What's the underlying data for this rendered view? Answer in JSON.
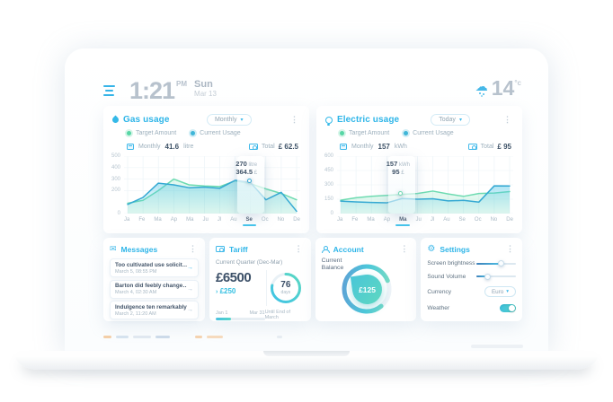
{
  "colors": {
    "accent": "#2eb5e8",
    "target_green": "#6edbb1",
    "current_blue": "#35a9d3",
    "text_dark": "#3f5368",
    "text_muted": "#9db0bd"
  },
  "glyphs": {
    "chevron_down": "▾",
    "kebab": "⋮",
    "envelope": "✉",
    "gear": "⚙",
    "cloud": "☁",
    "arrow_right": "→",
    "delta_caret": "›"
  },
  "statusbar": {
    "time": "1:21",
    "meridiem": "PM",
    "day": "Sun",
    "date": "Mar 13",
    "temperature": "14",
    "temp_unit": "°c"
  },
  "gas_panel": {
    "title": "Gas usage",
    "period": "Monthly",
    "meta_period_label": "Monthly",
    "meta_value": "41.6",
    "meta_unit": "litre",
    "total_label": "Total",
    "total_value": "£ 62.5"
  },
  "electric_panel": {
    "title": "Electric usage",
    "period": "Today",
    "meta_period_label": "Monthly",
    "meta_value": "157",
    "meta_unit": "kWh",
    "total_label": "Total",
    "total_value": "£ 95"
  },
  "messages_panel": {
    "title": "Messages",
    "items": [
      {
        "title": "Too cultivated use solicitude",
        "time": "March 5, 08:55 PM"
      },
      {
        "title": "Barton did feebly change man",
        "time": "March 4, 02:30 AM"
      },
      {
        "title": "Indulgence ten remarkably",
        "time": "March 2, 11:20 AM"
      }
    ]
  },
  "tariff_panel": {
    "title": "Tariff",
    "subtitle": "Current Quarter (Dec-Mar)",
    "amount": "£6500",
    "delta": "£250",
    "days_value": "76",
    "days_label": "days",
    "ring_progress": 78,
    "range_start": "Jan 1",
    "range_end": "Mar 31",
    "range_progress": 32,
    "footnote": "Until End of March"
  },
  "account_panel": {
    "title": "Account",
    "label_line1": "Current",
    "label_line2": "Balance",
    "balance": "£125",
    "gauge_progress": 80
  },
  "settings_panel": {
    "title": "Settings",
    "rows": [
      {
        "label": "Screen brightness",
        "type": "slider",
        "value": 62
      },
      {
        "label": "Sound Volume",
        "type": "slider",
        "value": 28
      },
      {
        "label": "Currency",
        "type": "select",
        "value": "Euro"
      },
      {
        "label": "Weather",
        "type": "toggle",
        "value": true
      }
    ]
  },
  "chart_data": [
    {
      "type": "line",
      "title": "Gas usage",
      "xlabel": "",
      "ylabel": "",
      "categories": [
        "Ja",
        "Fe",
        "Ma",
        "Ap",
        "Ma",
        "Ju",
        "Jl",
        "Au",
        "Se",
        "Oc",
        "No",
        "De"
      ],
      "series": [
        {
          "name": "Target Amount",
          "color": "#6edbb1",
          "fill": "rgba(110,219,177,0.20)",
          "values": [
            90,
            115,
            200,
            300,
            250,
            240,
            235,
            285,
            260,
            215,
            175,
            120
          ]
        },
        {
          "name": "Current Usage",
          "color": "#35a9d3",
          "fill_from": "rgba(80,197,230,0.45)",
          "fill_to": "rgba(80,197,230,0.04)",
          "values": [
            80,
            140,
            265,
            250,
            225,
            230,
            220,
            290,
            270,
            120,
            185,
            20
          ]
        }
      ],
      "ylim": [
        0,
        500
      ],
      "yticks": [
        500,
        400,
        300,
        200,
        0
      ],
      "grid": true,
      "legend_position": "top",
      "highlight_index": 8,
      "marker_series": 1,
      "tooltip": {
        "value": "270",
        "unit": "litre",
        "cost": "364.5",
        "cost_unit": "£"
      }
    },
    {
      "type": "line",
      "title": "Electric usage",
      "xlabel": "",
      "ylabel": "",
      "categories": [
        "Ja",
        "Fe",
        "Ma",
        "Ap",
        "Ma",
        "Ju",
        "Jl",
        "Au",
        "Se",
        "Oc",
        "No",
        "De"
      ],
      "series": [
        {
          "name": "Target Amount",
          "color": "#6edbb1",
          "fill": "rgba(110,219,177,0.20)",
          "values": [
            140,
            165,
            180,
            190,
            200,
            210,
            235,
            205,
            180,
            210,
            215,
            230
          ]
        },
        {
          "name": "Current Usage",
          "color": "#35a9d3",
          "fill_from": "rgba(80,197,230,0.45)",
          "fill_to": "rgba(80,197,230,0.04)",
          "values": [
            130,
            122,
            116,
            112,
            157,
            150,
            155,
            132,
            138,
            120,
            290,
            288
          ]
        }
      ],
      "ylim": [
        0,
        600
      ],
      "yticks": [
        600,
        450,
        300,
        150,
        0
      ],
      "grid": true,
      "legend_position": "top",
      "highlight_index": 4,
      "marker_series": 0,
      "tooltip": {
        "value": "157",
        "unit": "kWh",
        "cost": "95",
        "cost_unit": "£"
      }
    }
  ]
}
